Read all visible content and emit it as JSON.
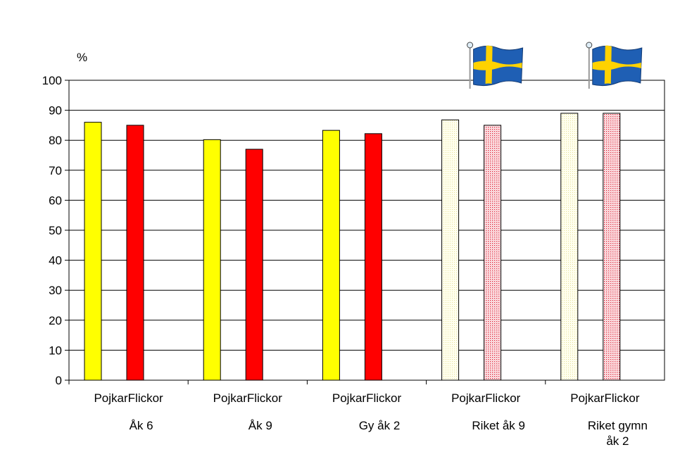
{
  "chart_data": {
    "type": "bar",
    "unit_label": "%",
    "ylim": [
      0,
      100
    ],
    "yticks": [
      0,
      10,
      20,
      30,
      40,
      50,
      60,
      70,
      80,
      90,
      100
    ],
    "grid": true,
    "groups": [
      {
        "label": [
          "Åk 6"
        ],
        "bars": [
          {
            "label": "Pojkar",
            "value": 86,
            "color": "#ffff00",
            "pattern": "solid"
          },
          {
            "label": "Flickor",
            "value": 85,
            "color": "#ff0000",
            "pattern": "solid"
          }
        ]
      },
      {
        "label": [
          "Åk 9"
        ],
        "bars": [
          {
            "label": "Pojkar",
            "value": 80.2,
            "color": "#ffff00",
            "pattern": "solid"
          },
          {
            "label": "Flickor",
            "value": 77,
            "color": "#ff0000",
            "pattern": "solid"
          }
        ]
      },
      {
        "label": [
          "Gy åk 2"
        ],
        "bars": [
          {
            "label": "Pojkar",
            "value": 83.3,
            "color": "#ffff00",
            "pattern": "solid"
          },
          {
            "label": "Flickor",
            "value": 82.2,
            "color": "#ff0000",
            "pattern": "solid"
          }
        ]
      },
      {
        "label": [
          "Riket åk 9"
        ],
        "flag": "swedish-flag-icon",
        "bars": [
          {
            "label": "Pojkar",
            "value": 86.8,
            "color": "#ffffcc",
            "pattern": "dotted"
          },
          {
            "label": "Flickor",
            "value": 85,
            "color": "#ff9999",
            "pattern": "dotted"
          }
        ]
      },
      {
        "label": [
          "Riket gymn",
          "åk 2"
        ],
        "flag": "swedish-flag-icon",
        "bars": [
          {
            "label": "Pojkar",
            "value": 89,
            "color": "#ffffcc",
            "pattern": "dotted"
          },
          {
            "label": "Flickor",
            "value": 89,
            "color": "#ff9999",
            "pattern": "dotted"
          }
        ]
      }
    ],
    "colors": {
      "flag_blue": "#1f5fb4",
      "flag_yellow": "#ffd200",
      "axis": "#000000"
    }
  }
}
